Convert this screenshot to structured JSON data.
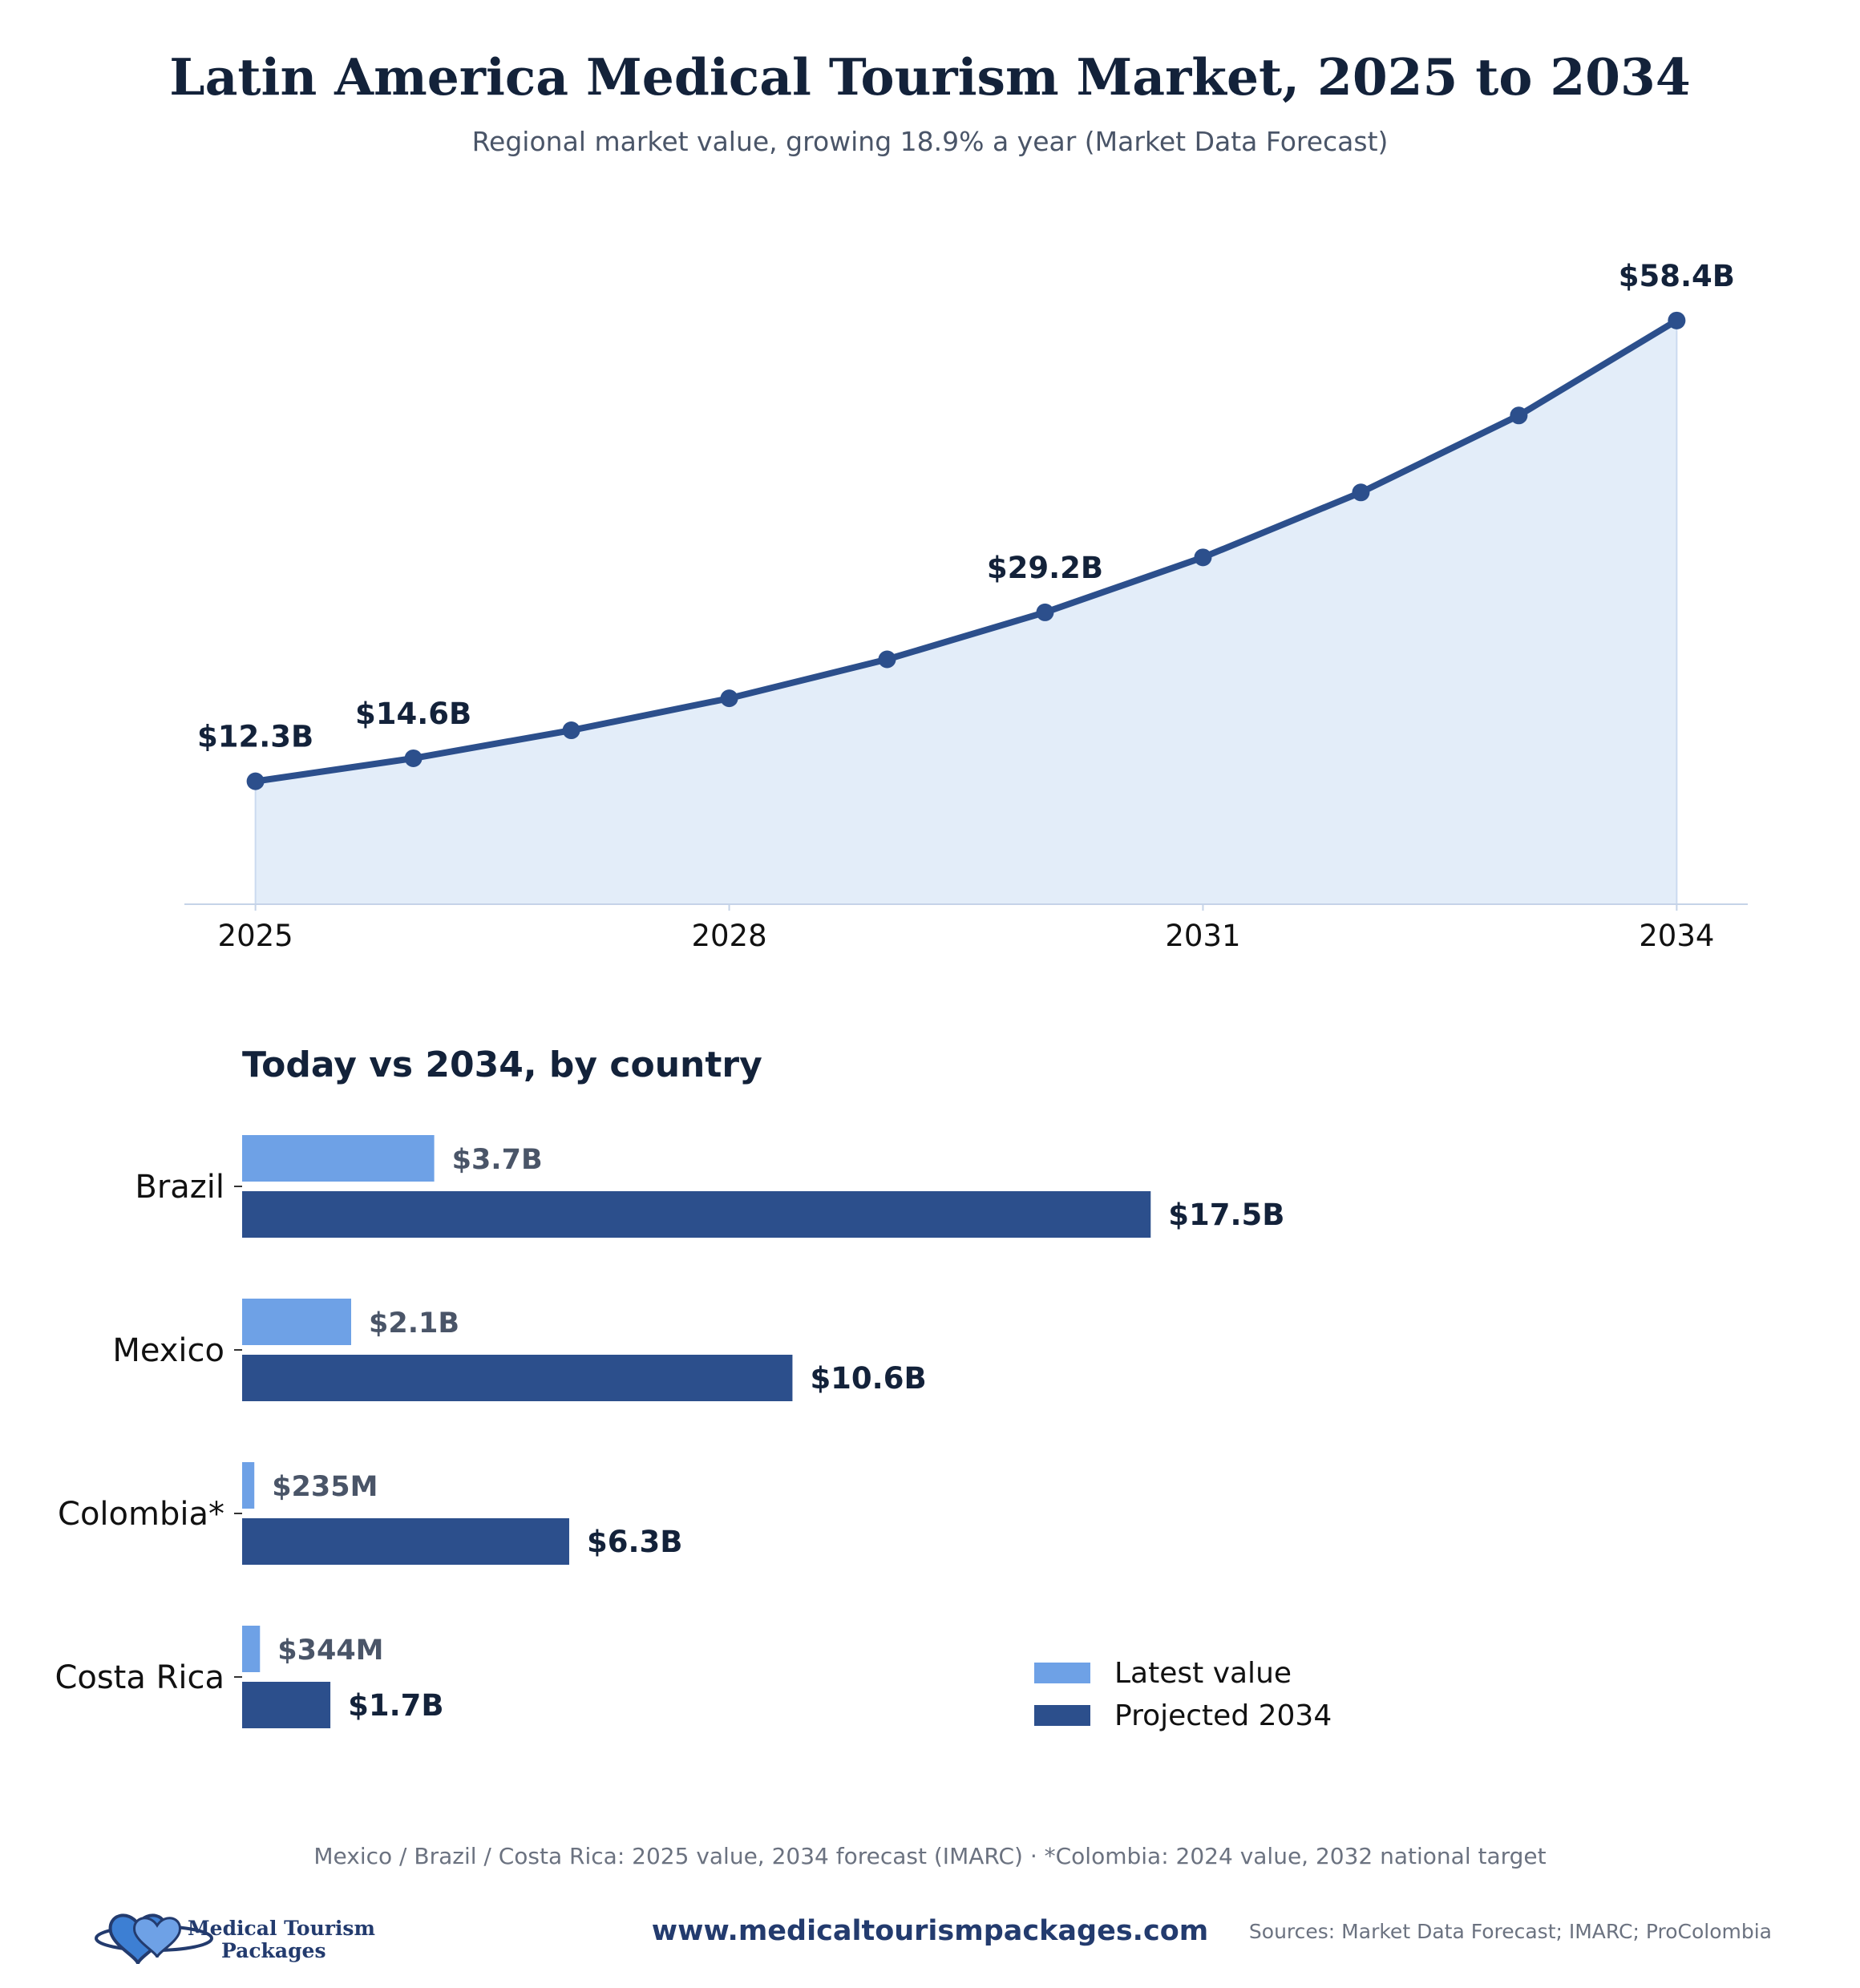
{
  "header": {
    "title": "Latin America Medical Tourism Market, 2025 to 2034",
    "subtitle": "Regional market value, growing 18.9% a year (Market Data Forecast)"
  },
  "colors": {
    "line": "#2c4f8c",
    "area_fill": "#e3edf9",
    "latest_bar": "#6ea1e6",
    "projected_bar": "#2c4f8c"
  },
  "chart_data": [
    {
      "type": "area",
      "x": [
        2025,
        2026,
        2027,
        2028,
        2029,
        2030,
        2031,
        2032,
        2033,
        2034
      ],
      "series": [
        {
          "values": [
            12.3,
            14.6,
            17.4,
            20.6,
            24.5,
            29.2,
            34.7,
            41.2,
            48.9,
            58.4
          ]
        }
      ],
      "unit": "$B",
      "point_labels": [
        {
          "x": 2025,
          "text": "$12.3B"
        },
        {
          "x": 2026,
          "text": "$14.6B"
        },
        {
          "x": 2030,
          "text": "$29.2B"
        },
        {
          "x": 2034,
          "text": "$58.4B"
        }
      ],
      "x_ticks": [
        "2025",
        "2028",
        "2031",
        "2034"
      ],
      "xlim": [
        2024.55,
        2034.45
      ],
      "ylim": [
        0,
        64
      ],
      "grid": false,
      "legend": "none"
    },
    {
      "type": "bar",
      "orientation": "horizontal",
      "title": "Today vs 2034, by country",
      "categories": [
        "Brazil",
        "Mexico",
        "Colombia*",
        "Costa Rica"
      ],
      "series": [
        {
          "name": "Latest value",
          "values": [
            3.7,
            2.1,
            0.235,
            0.344
          ],
          "labels": [
            "$3.7B",
            "$2.1B",
            "$235M",
            "$344M"
          ]
        },
        {
          "name": "Projected 2034",
          "values": [
            17.5,
            10.6,
            6.3,
            1.7
          ],
          "labels": [
            "$17.5B",
            "$10.6B",
            "$6.3B",
            "$1.7B"
          ]
        }
      ],
      "unit": "$B",
      "xlim": [
        0,
        29
      ],
      "legend": "bottom-right"
    }
  ],
  "footer": {
    "footnote": "Mexico / Brazil / Costa Rica: 2025 value, 2034 forecast (IMARC) · *Colombia: 2024 value, 2032 national target",
    "website": "www.medicaltourismpackages.com",
    "sources": "Sources: Market Data Forecast; IMARC; ProColombia",
    "logo_line1": "Medical Tourism",
    "logo_line2": "Packages"
  }
}
